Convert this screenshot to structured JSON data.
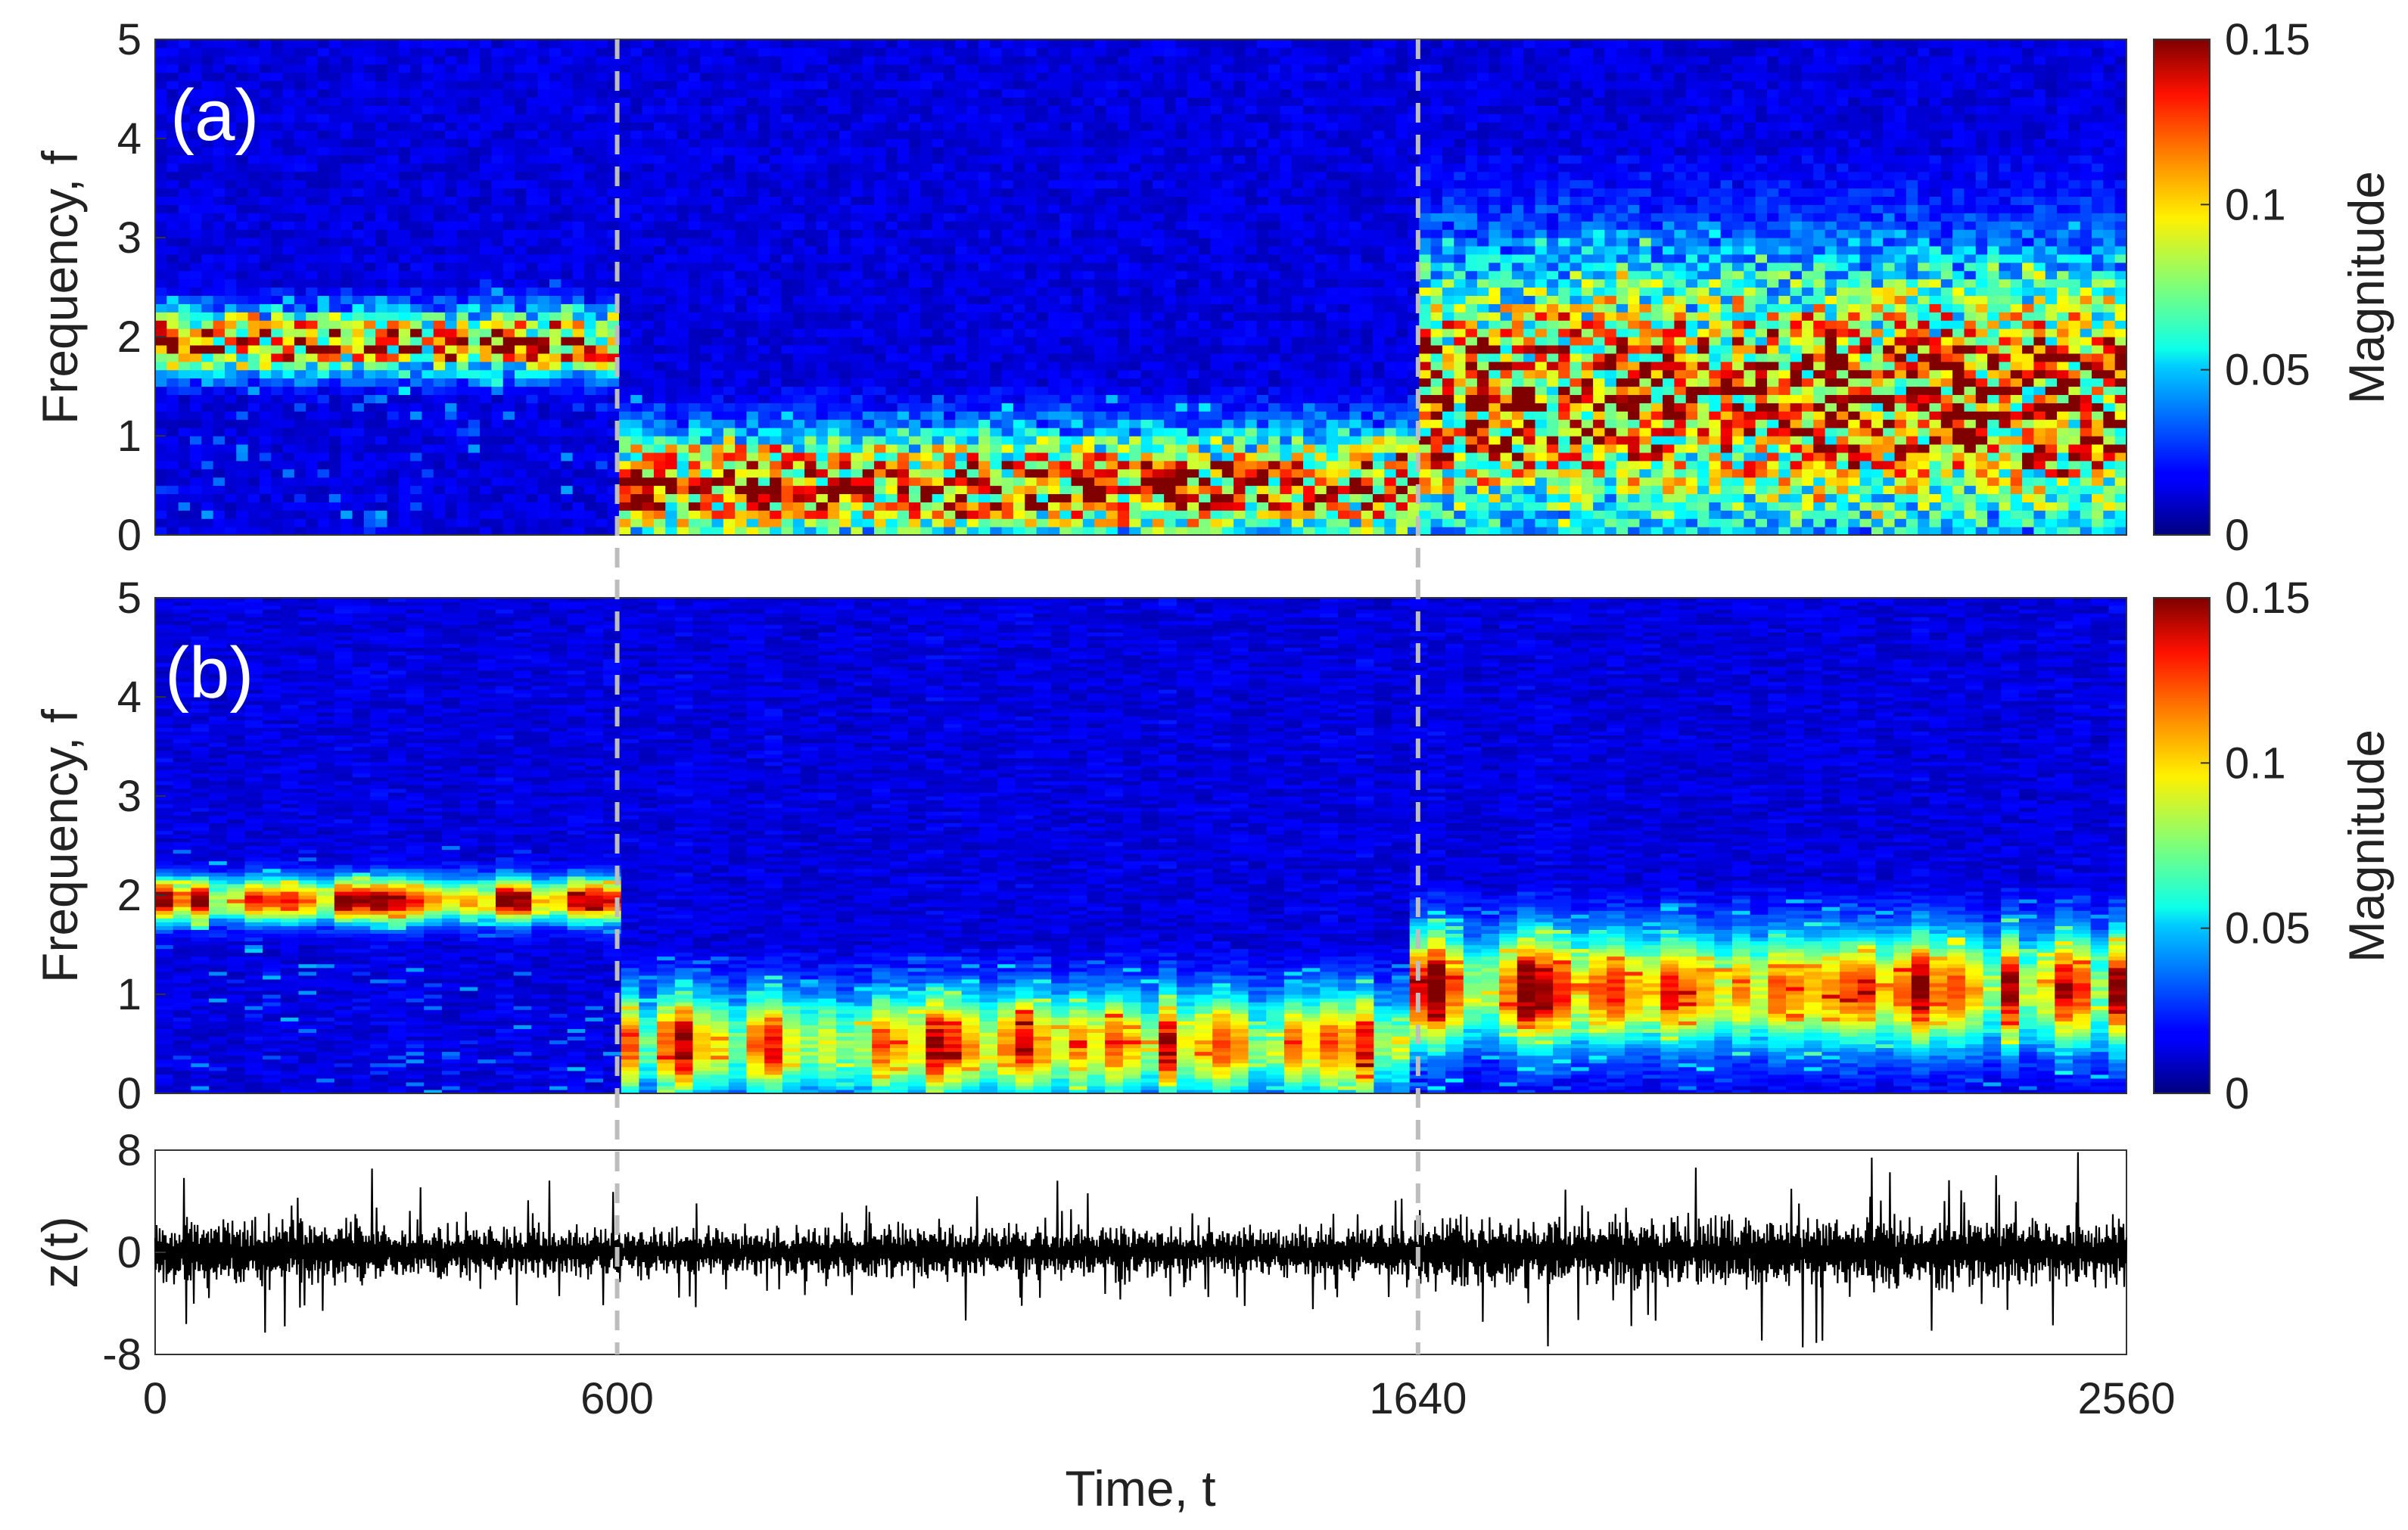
{
  "chart_data": [
    {
      "id": "a",
      "type": "heatmap",
      "panel_label": "(a)",
      "ylabel": "Frequency, f",
      "xlim": [
        0,
        2560
      ],
      "ylim": [
        0,
        5
      ],
      "yticks": [
        "0",
        "1",
        "2",
        "3",
        "4",
        "5"
      ],
      "colorbar": {
        "label": "Magnitude",
        "range": [
          0,
          0.15
        ],
        "ticks": [
          "0",
          "0.05",
          "0.1",
          "0.15"
        ],
        "colormap": "jet"
      },
      "dashed_markers_t": [
        600,
        1640
      ],
      "regimes": [
        {
          "t_range": [
            0,
            600
          ],
          "dominant_f": [
            1.7,
            2.2
          ],
          "peak_magnitude": 0.15,
          "note": "narrowband ~2 with bands near 0.2 and 1.2"
        },
        {
          "t_range": [
            600,
            1640
          ],
          "dominant_f": [
            0,
            1.0
          ],
          "peak_magnitude": 0.15,
          "note": "broadband low-frequency energy below 1"
        },
        {
          "t_range": [
            1640,
            2560
          ],
          "dominant_f": [
            0,
            2.8
          ],
          "peak_magnitude": 0.15,
          "note": "broadband energy up to ~3"
        }
      ]
    },
    {
      "id": "b",
      "type": "heatmap",
      "panel_label": "(b)",
      "ylabel": "Frequency, f",
      "xlim": [
        0,
        2560
      ],
      "ylim": [
        0,
        5
      ],
      "yticks": [
        "0",
        "1",
        "2",
        "3",
        "4",
        "5"
      ],
      "colorbar": {
        "label": "Magnitude",
        "range": [
          0,
          0.15
        ],
        "ticks": [
          "0",
          "0.05",
          "0.1",
          "0.15"
        ],
        "colormap": "jet"
      },
      "dashed_markers_t": [
        600,
        1640
      ],
      "regimes": [
        {
          "t_range": [
            0,
            600
          ],
          "dominant_f": [
            1.8,
            2.1
          ],
          "peak_magnitude": 0.15,
          "note": "sharp ridge near f≈2"
        },
        {
          "t_range": [
            600,
            1640
          ],
          "dominant_f": [
            0,
            1.0
          ],
          "peak_magnitude": 0.13,
          "note": "horizontal streaks below 1"
        },
        {
          "t_range": [
            1640,
            2560
          ],
          "dominant_f": [
            0.5,
            1.6
          ],
          "peak_magnitude": 0.15,
          "note": "streaks between 0.5 and 1.6, some up to 2.5"
        }
      ]
    },
    {
      "id": "c",
      "type": "line",
      "ylabel": "z(t)",
      "xlabel": "Time, t",
      "xlim": [
        0,
        2560
      ],
      "ylim": [
        -8,
        8
      ],
      "xticks": [
        "0",
        "600",
        "1640",
        "2560"
      ],
      "yticks": [
        "-8",
        "0",
        "8"
      ],
      "line_color": "#000000",
      "amplitude_envelope": [
        {
          "t_range": [
            0,
            300
          ],
          "max_abs": 8
        },
        {
          "t_range": [
            300,
            600
          ],
          "max_abs": 6
        },
        {
          "t_range": [
            600,
            1640
          ],
          "max_abs": 6
        },
        {
          "t_range": [
            1640,
            2560
          ],
          "max_abs": 8
        }
      ]
    }
  ]
}
